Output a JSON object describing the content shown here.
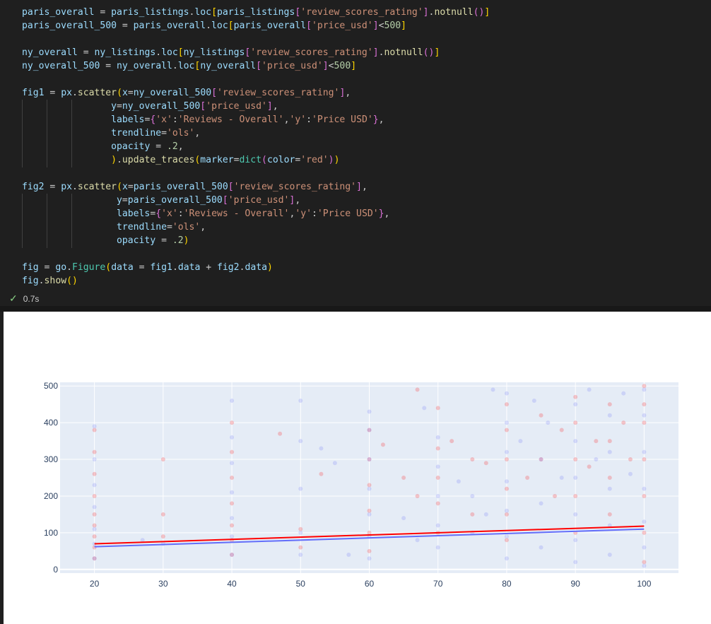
{
  "code": {
    "lines": [
      [
        [
          "paris_overall",
          "v"
        ],
        [
          " = ",
          ""
        ],
        [
          "paris_listings",
          "v"
        ],
        [
          ".",
          ""
        ],
        [
          "loc",
          "v"
        ],
        [
          "[",
          "b1"
        ],
        [
          "paris_listings",
          "v"
        ],
        [
          "[",
          "b2"
        ],
        [
          "'review_scores_rating'",
          "s"
        ],
        [
          "]",
          "b2"
        ],
        [
          ".",
          ""
        ],
        [
          "notnull",
          "f"
        ],
        [
          "()",
          "b2"
        ],
        [
          "]",
          "b1"
        ]
      ],
      [
        [
          "paris_overall_500",
          "v"
        ],
        [
          " = ",
          ""
        ],
        [
          "paris_overall",
          "v"
        ],
        [
          ".",
          ""
        ],
        [
          "loc",
          "v"
        ],
        [
          "[",
          "b1"
        ],
        [
          "paris_overall",
          "v"
        ],
        [
          "[",
          "b2"
        ],
        [
          "'price_usd'",
          "s"
        ],
        [
          "]",
          "b2"
        ],
        [
          "<",
          ""
        ],
        [
          "500",
          "n"
        ],
        [
          "]",
          "b1"
        ]
      ],
      [],
      [
        [
          "ny_overall",
          "v"
        ],
        [
          " = ",
          ""
        ],
        [
          "ny_listings",
          "v"
        ],
        [
          ".",
          ""
        ],
        [
          "loc",
          "v"
        ],
        [
          "[",
          "b1"
        ],
        [
          "ny_listings",
          "v"
        ],
        [
          "[",
          "b2"
        ],
        [
          "'review_scores_rating'",
          "s"
        ],
        [
          "]",
          "b2"
        ],
        [
          ".",
          ""
        ],
        [
          "notnull",
          "f"
        ],
        [
          "()",
          "b2"
        ],
        [
          "]",
          "b1"
        ]
      ],
      [
        [
          "ny_overall_500",
          "v"
        ],
        [
          " = ",
          ""
        ],
        [
          "ny_overall",
          "v"
        ],
        [
          ".",
          ""
        ],
        [
          "loc",
          "v"
        ],
        [
          "[",
          "b1"
        ],
        [
          "ny_overall",
          "v"
        ],
        [
          "[",
          "b2"
        ],
        [
          "'price_usd'",
          "s"
        ],
        [
          "]",
          "b2"
        ],
        [
          "<",
          ""
        ],
        [
          "500",
          "n"
        ],
        [
          "]",
          "b1"
        ]
      ],
      [],
      [
        [
          "fig1",
          "v"
        ],
        [
          " = ",
          ""
        ],
        [
          "px",
          "v"
        ],
        [
          ".",
          ""
        ],
        [
          "scatter",
          "f"
        ],
        [
          "(",
          "b1"
        ],
        [
          "x",
          "v"
        ],
        [
          "=",
          ""
        ],
        [
          "ny_overall_500",
          "v"
        ],
        [
          "[",
          "b2"
        ],
        [
          "'review_scores_rating'",
          "s"
        ],
        [
          "]",
          "b2"
        ],
        [
          ",",
          ""
        ]
      ],
      [
        [
          "                ",
          ""
        ],
        [
          "y",
          "v"
        ],
        [
          "=",
          ""
        ],
        [
          "ny_overall_500",
          "v"
        ],
        [
          "[",
          "b2"
        ],
        [
          "'price_usd'",
          "s"
        ],
        [
          "]",
          "b2"
        ],
        [
          ",",
          ""
        ]
      ],
      [
        [
          "                ",
          ""
        ],
        [
          "labels",
          "v"
        ],
        [
          "=",
          ""
        ],
        [
          "{",
          "b2"
        ],
        [
          "'x'",
          "s"
        ],
        [
          ":",
          ""
        ],
        [
          "'Reviews - Overall'",
          "s"
        ],
        [
          ",",
          ""
        ],
        [
          "'y'",
          "s"
        ],
        [
          ":",
          ""
        ],
        [
          "'Price USD'",
          "s"
        ],
        [
          "}",
          "b2"
        ],
        [
          ",",
          ""
        ]
      ],
      [
        [
          "                ",
          ""
        ],
        [
          "trendline",
          "v"
        ],
        [
          "=",
          ""
        ],
        [
          "'ols'",
          "s"
        ],
        [
          ",",
          ""
        ]
      ],
      [
        [
          "                ",
          ""
        ],
        [
          "opacity",
          "v"
        ],
        [
          " = ",
          ""
        ],
        [
          ".2",
          "n"
        ],
        [
          ",",
          ""
        ]
      ],
      [
        [
          "                ",
          ""
        ],
        [
          ")",
          "b1"
        ],
        [
          ".",
          ""
        ],
        [
          "update_traces",
          "f"
        ],
        [
          "(",
          "b1"
        ],
        [
          "marker",
          "v"
        ],
        [
          "=",
          ""
        ],
        [
          "dict",
          "m"
        ],
        [
          "(",
          "b2"
        ],
        [
          "color",
          "v"
        ],
        [
          "=",
          ""
        ],
        [
          "'red'",
          "s"
        ],
        [
          ")",
          "b2"
        ],
        [
          ")",
          "b1"
        ]
      ],
      [],
      [
        [
          "fig2",
          "v"
        ],
        [
          " = ",
          ""
        ],
        [
          "px",
          "v"
        ],
        [
          ".",
          ""
        ],
        [
          "scatter",
          "f"
        ],
        [
          "(",
          "b1"
        ],
        [
          "x",
          "v"
        ],
        [
          "=",
          ""
        ],
        [
          "paris_overall_500",
          "v"
        ],
        [
          "[",
          "b2"
        ],
        [
          "'review_scores_rating'",
          "s"
        ],
        [
          "]",
          "b2"
        ],
        [
          ",",
          ""
        ]
      ],
      [
        [
          "                 ",
          ""
        ],
        [
          "y",
          "v"
        ],
        [
          "=",
          ""
        ],
        [
          "paris_overall_500",
          "v"
        ],
        [
          "[",
          "b2"
        ],
        [
          "'price_usd'",
          "s"
        ],
        [
          "]",
          "b2"
        ],
        [
          ",",
          ""
        ]
      ],
      [
        [
          "                 ",
          ""
        ],
        [
          "labels",
          "v"
        ],
        [
          "=",
          ""
        ],
        [
          "{",
          "b2"
        ],
        [
          "'x'",
          "s"
        ],
        [
          ":",
          ""
        ],
        [
          "'Reviews - Overall'",
          "s"
        ],
        [
          ",",
          ""
        ],
        [
          "'y'",
          "s"
        ],
        [
          ":",
          ""
        ],
        [
          "'Price USD'",
          "s"
        ],
        [
          "}",
          "b2"
        ],
        [
          ",",
          ""
        ]
      ],
      [
        [
          "                 ",
          ""
        ],
        [
          "trendline",
          "v"
        ],
        [
          "=",
          ""
        ],
        [
          "'ols'",
          "s"
        ],
        [
          ",",
          ""
        ]
      ],
      [
        [
          "                 ",
          ""
        ],
        [
          "opacity",
          "v"
        ],
        [
          " = ",
          ""
        ],
        [
          ".2",
          "n"
        ],
        [
          ")",
          "b1"
        ]
      ],
      [],
      [
        [
          "fig",
          "v"
        ],
        [
          " = ",
          ""
        ],
        [
          "go",
          "v"
        ],
        [
          ".",
          ""
        ],
        [
          "Figure",
          "m"
        ],
        [
          "(",
          "b1"
        ],
        [
          "data",
          "v"
        ],
        [
          " = ",
          ""
        ],
        [
          "fig1",
          "v"
        ],
        [
          ".",
          ""
        ],
        [
          "data",
          "v"
        ],
        [
          " + ",
          ""
        ],
        [
          "fig2",
          "v"
        ],
        [
          ".",
          ""
        ],
        [
          "data",
          "v"
        ],
        [
          ")",
          "b1"
        ]
      ],
      [
        [
          "fig",
          "v"
        ],
        [
          ".",
          ""
        ],
        [
          "show",
          "f"
        ],
        [
          "()",
          "b1"
        ]
      ]
    ]
  },
  "status": {
    "check_icon": "check-icon",
    "time": "0.7s"
  },
  "colors": {
    "string": "#ce9178",
    "variable": "#9cdcfe",
    "function": "#dcdcaa",
    "number": "#b5cea8",
    "class": "#4ec9b0",
    "bracket1": "#ffd700",
    "bracket2": "#da70d6",
    "ny": "#ff0000",
    "paris": "#636efa",
    "plot_bg": "#e5ecf6"
  },
  "chart_data": {
    "type": "scatter",
    "title": "",
    "xlabel": "",
    "ylabel": "",
    "xlim": [
      15,
      105
    ],
    "ylim": [
      -10,
      510
    ],
    "grid": true,
    "legend": "none",
    "x_ticks": [
      20,
      30,
      40,
      50,
      60,
      70,
      80,
      90,
      100
    ],
    "y_ticks": [
      0,
      100,
      200,
      300,
      400,
      500
    ],
    "opacity": 0.2,
    "series": [
      {
        "color": "#ff0000",
        "points": [
          [
            20,
            30
          ],
          [
            20,
            60
          ],
          [
            20,
            90
          ],
          [
            20,
            120
          ],
          [
            20,
            150
          ],
          [
            20,
            200
          ],
          [
            20,
            260
          ],
          [
            20,
            320
          ],
          [
            20,
            380
          ],
          [
            30,
            90
          ],
          [
            30,
            150
          ],
          [
            30,
            300
          ],
          [
            40,
            40
          ],
          [
            40,
            80
          ],
          [
            40,
            120
          ],
          [
            40,
            180
          ],
          [
            40,
            250
          ],
          [
            40,
            320
          ],
          [
            40,
            400
          ],
          [
            47,
            370
          ],
          [
            50,
            60
          ],
          [
            50,
            110
          ],
          [
            53,
            260
          ],
          [
            60,
            50
          ],
          [
            60,
            100
          ],
          [
            60,
            160
          ],
          [
            60,
            230
          ],
          [
            60,
            300
          ],
          [
            60,
            380
          ],
          [
            62,
            340
          ],
          [
            65,
            250
          ],
          [
            67,
            200
          ],
          [
            67,
            490
          ],
          [
            70,
            100
          ],
          [
            70,
            180
          ],
          [
            70,
            250
          ],
          [
            70,
            330
          ],
          [
            70,
            440
          ],
          [
            72,
            350
          ],
          [
            75,
            150
          ],
          [
            75,
            300
          ],
          [
            77,
            290
          ],
          [
            80,
            80
          ],
          [
            80,
            150
          ],
          [
            80,
            220
          ],
          [
            80,
            300
          ],
          [
            80,
            380
          ],
          [
            80,
            450
          ],
          [
            83,
            250
          ],
          [
            85,
            300
          ],
          [
            85,
            420
          ],
          [
            87,
            200
          ],
          [
            88,
            380
          ],
          [
            90,
            100
          ],
          [
            90,
            200
          ],
          [
            90,
            300
          ],
          [
            90,
            400
          ],
          [
            90,
            470
          ],
          [
            92,
            280
          ],
          [
            93,
            350
          ],
          [
            95,
            150
          ],
          [
            95,
            250
          ],
          [
            95,
            350
          ],
          [
            95,
            450
          ],
          [
            97,
            400
          ],
          [
            98,
            300
          ],
          [
            100,
            20
          ],
          [
            100,
            100
          ],
          [
            100,
            200
          ],
          [
            100,
            300
          ],
          [
            100,
            400
          ],
          [
            100,
            450
          ],
          [
            100,
            500
          ]
        ],
        "trendline": [
          [
            20,
            70
          ],
          [
            100,
            118
          ]
        ]
      },
      {
        "color": "#636efa",
        "points": [
          [
            20,
            30
          ],
          [
            20,
            70
          ],
          [
            20,
            110
          ],
          [
            20,
            170
          ],
          [
            20,
            230
          ],
          [
            20,
            300
          ],
          [
            20,
            390
          ],
          [
            27,
            80
          ],
          [
            30,
            70
          ],
          [
            40,
            40
          ],
          [
            40,
            90
          ],
          [
            40,
            140
          ],
          [
            40,
            210
          ],
          [
            40,
            290
          ],
          [
            40,
            360
          ],
          [
            40,
            460
          ],
          [
            50,
            40
          ],
          [
            50,
            100
          ],
          [
            50,
            220
          ],
          [
            50,
            350
          ],
          [
            50,
            460
          ],
          [
            53,
            330
          ],
          [
            55,
            290
          ],
          [
            57,
            40
          ],
          [
            60,
            30
          ],
          [
            60,
            90
          ],
          [
            60,
            150
          ],
          [
            60,
            220
          ],
          [
            60,
            300
          ],
          [
            60,
            380
          ],
          [
            60,
            430
          ],
          [
            65,
            140
          ],
          [
            67,
            80
          ],
          [
            68,
            440
          ],
          [
            70,
            60
          ],
          [
            70,
            120
          ],
          [
            70,
            200
          ],
          [
            70,
            280
          ],
          [
            70,
            360
          ],
          [
            73,
            240
          ],
          [
            75,
            100
          ],
          [
            75,
            200
          ],
          [
            77,
            150
          ],
          [
            78,
            490
          ],
          [
            80,
            30
          ],
          [
            80,
            90
          ],
          [
            80,
            160
          ],
          [
            80,
            240
          ],
          [
            80,
            320
          ],
          [
            80,
            400
          ],
          [
            80,
            480
          ],
          [
            82,
            350
          ],
          [
            84,
            460
          ],
          [
            85,
            60
          ],
          [
            85,
            180
          ],
          [
            85,
            300
          ],
          [
            86,
            400
          ],
          [
            88,
            250
          ],
          [
            90,
            20
          ],
          [
            90,
            80
          ],
          [
            90,
            150
          ],
          [
            90,
            250
          ],
          [
            90,
            350
          ],
          [
            90,
            450
          ],
          [
            92,
            490
          ],
          [
            93,
            300
          ],
          [
            95,
            40
          ],
          [
            95,
            120
          ],
          [
            95,
            220
          ],
          [
            95,
            320
          ],
          [
            95,
            420
          ],
          [
            97,
            480
          ],
          [
            98,
            260
          ],
          [
            100,
            10
          ],
          [
            100,
            60
          ],
          [
            100,
            130
          ],
          [
            100,
            220
          ],
          [
            100,
            320
          ],
          [
            100,
            420
          ],
          [
            100,
            490
          ]
        ],
        "trendline": [
          [
            20,
            62
          ],
          [
            100,
            110
          ]
        ]
      }
    ]
  }
}
